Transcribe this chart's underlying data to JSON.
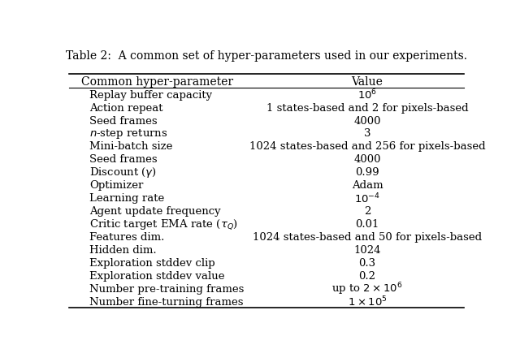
{
  "title": "Table 2:  A common set of hyper-parameters used in our experiments.",
  "col_headers": [
    "Common hyper-parameter",
    "Value"
  ],
  "rows": [
    [
      "Replay buffer capacity",
      "$10^6$"
    ],
    [
      "Action repeat",
      "1 states-based and 2 for pixels-based"
    ],
    [
      "Seed frames",
      "4000"
    ],
    [
      "$n$-step returns",
      "3"
    ],
    [
      "Mini-batch size",
      "1024 states-based and 256 for pixels-based"
    ],
    [
      "Seed frames",
      "4000"
    ],
    [
      "Discount ($\\gamma$)",
      "0.99"
    ],
    [
      "Optimizer",
      "Adam"
    ],
    [
      "Learning rate",
      "$10^{-4}$"
    ],
    [
      "Agent update frequency",
      "2"
    ],
    [
      "Critic target EMA rate ($\\tau_Q$)",
      "0.01"
    ],
    [
      "Features dim.",
      "1024 states-based and 50 for pixels-based"
    ],
    [
      "Hidden dim.",
      "1024"
    ],
    [
      "Exploration stddev clip",
      "0.3"
    ],
    [
      "Exploration stddev value",
      "0.2"
    ],
    [
      "Number pre-training frames",
      "up to $2 \\times 10^6$"
    ],
    [
      "Number fine-turning frames",
      "$1 \\times 10^5$"
    ]
  ],
  "bg_color": "#ffffff",
  "text_color": "#000000",
  "header_fontsize": 10,
  "row_fontsize": 9.5,
  "title_fontsize": 10
}
